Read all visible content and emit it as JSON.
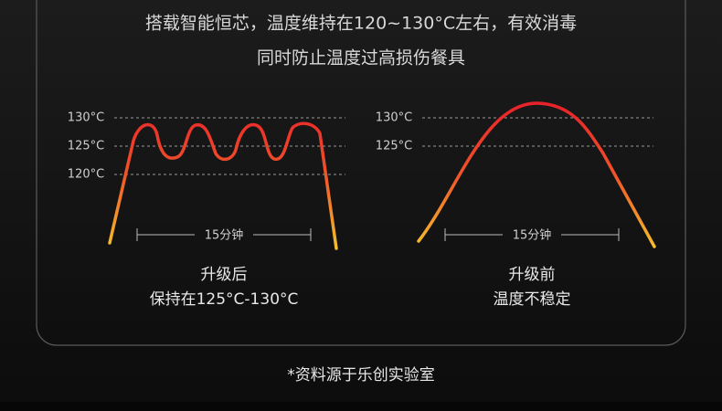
{
  "header": {
    "lines": [
      "搭载智能恒芯，温度维持在120~130°C左右，有效消毒",
      "同时防止温度过高损伤餐具"
    ]
  },
  "panels": [
    {
      "tick_labels": [
        "130°C",
        "125°C",
        "120°C"
      ],
      "duration": "15分钟",
      "caption": [
        "升级后",
        "保持在125°C-130°C"
      ]
    },
    {
      "tick_labels": [
        "130°C",
        "125°C"
      ],
      "duration": "15分钟",
      "caption": [
        "升级前",
        "温度不稳定"
      ]
    }
  ],
  "footnote": "*资料源于乐创实验室"
}
